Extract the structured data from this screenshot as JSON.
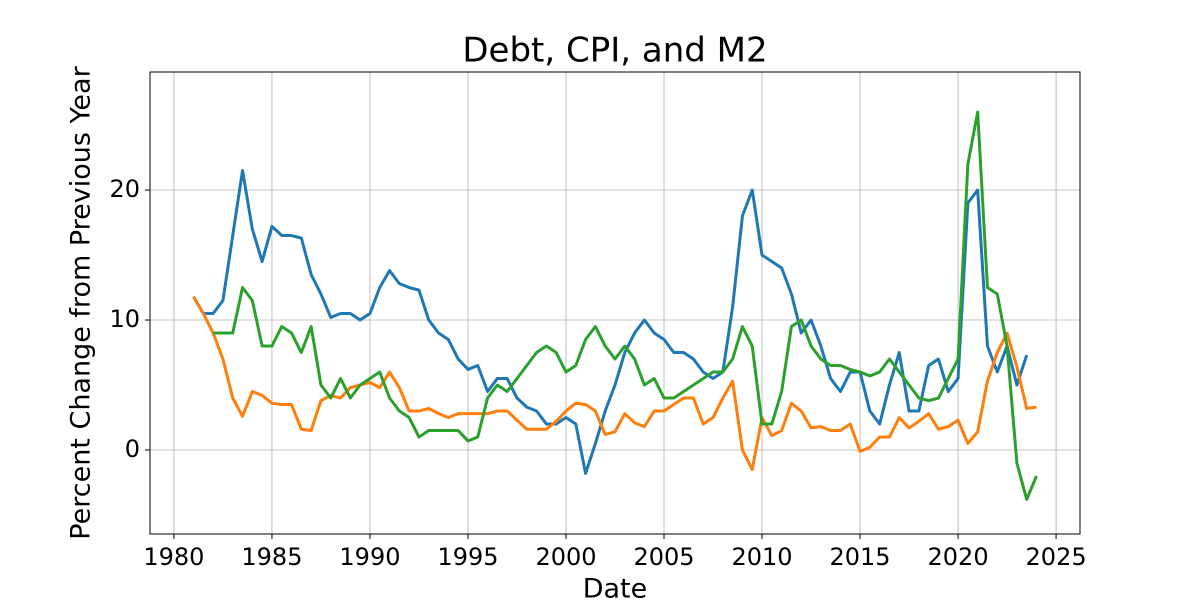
{
  "chart_data": {
    "type": "line",
    "title": "Debt, CPI, and M2",
    "x_label": "Date",
    "y_label": "Percent Change from Previous Year",
    "x": [
      1981,
      1981.5,
      1982,
      1982.5,
      1983,
      1983.5,
      1984,
      1984.5,
      1985,
      1985.5,
      1986,
      1986.5,
      1987,
      1987.5,
      1988,
      1988.5,
      1989,
      1989.5,
      1990,
      1990.5,
      1991,
      1991.5,
      1992,
      1992.5,
      1993,
      1993.5,
      1994,
      1994.5,
      1995,
      1995.5,
      1996,
      1996.5,
      1997,
      1997.5,
      1998,
      1998.5,
      1999,
      1999.5,
      2000,
      2000.5,
      2001,
      2001.5,
      2002,
      2002.5,
      2003,
      2003.5,
      2004,
      2004.5,
      2005,
      2005.5,
      2006,
      2006.5,
      2007,
      2007.5,
      2008,
      2008.5,
      2009,
      2009.5,
      2010,
      2010.5,
      2011,
      2011.5,
      2012,
      2012.5,
      2013,
      2013.5,
      2014,
      2014.5,
      2015,
      2015.5,
      2016,
      2016.5,
      2017,
      2017.5,
      2018,
      2018.5,
      2019,
      2019.5,
      2020,
      2020.5,
      2021,
      2021.5,
      2022,
      2022.5,
      2023,
      2023.5,
      2024
    ],
    "series": [
      {
        "color": "#1f77b4",
        "values": [
          11.8,
          10.5,
          10.5,
          11.5,
          16.5,
          21.5,
          17,
          14.5,
          17.2,
          16.5,
          16.5,
          16.3,
          13.5,
          12,
          10.2,
          10.5,
          10.5,
          10,
          10.5,
          12.5,
          13.8,
          12.8,
          12.5,
          12.3,
          10,
          9,
          8.5,
          7,
          6.2,
          6.5,
          4.5,
          5.5,
          5.5,
          4,
          3.3,
          3,
          2,
          2,
          2.5,
          2,
          -1.8,
          0.5,
          3,
          5,
          7.5,
          9,
          10,
          9,
          8.5,
          7.5,
          7.5,
          7,
          6,
          5.5,
          6,
          11,
          18,
          20,
          15,
          14.5,
          14,
          12,
          9,
          10,
          8,
          5.5,
          4.5,
          6,
          6,
          3,
          2,
          5,
          7.5,
          3,
          3,
          6.5,
          7,
          4.5,
          5.5,
          19,
          20,
          8,
          6,
          8,
          5,
          7.3,
          null
        ]
      },
      {
        "color": "#ff7f0e",
        "values": [
          11.8,
          10.5,
          9,
          7,
          4,
          2.6,
          4.5,
          4.2,
          3.6,
          3.5,
          3.5,
          1.6,
          1.5,
          3.8,
          4.2,
          4,
          4.8,
          5,
          5.2,
          4.8,
          6,
          4.8,
          3,
          3,
          3.2,
          2.8,
          2.5,
          2.8,
          2.8,
          2.8,
          2.8,
          3,
          3,
          2.3,
          1.6,
          1.6,
          1.6,
          2.2,
          3,
          3.6,
          3.5,
          3,
          1.2,
          1.4,
          2.8,
          2.1,
          1.8,
          3,
          3,
          3.5,
          4,
          4,
          2,
          2.5,
          4,
          5.3,
          0,
          -1.5,
          2.5,
          1.1,
          1.5,
          3.6,
          3,
          1.7,
          1.8,
          1.5,
          1.5,
          2,
          -0.1,
          0.2,
          1,
          1,
          2.5,
          1.7,
          2.2,
          2.8,
          1.6,
          1.8,
          2.3,
          0.5,
          1.4,
          5.3,
          7.5,
          9,
          6.4,
          3.2,
          3.3
        ]
      },
      {
        "color": "#2ca02c",
        "values": [
          null,
          null,
          9,
          9,
          9,
          12.5,
          11.5,
          8,
          8,
          9.5,
          9,
          7.5,
          9.5,
          5,
          4,
          5.5,
          4,
          5,
          5.5,
          6,
          4,
          3,
          2.5,
          1,
          1.5,
          1.5,
          1.5,
          1.5,
          0.7,
          1,
          4,
          5,
          4.5,
          5.5,
          6.5,
          7.5,
          8,
          7.5,
          6,
          6.5,
          8.5,
          9.5,
          8,
          7,
          8,
          7,
          5,
          5.5,
          4,
          4,
          4.5,
          5,
          5.5,
          6,
          6,
          7,
          9.5,
          8,
          2,
          2,
          4.5,
          9.5,
          10,
          8,
          7,
          6.5,
          6.5,
          6.2,
          6,
          5.7,
          6,
          7,
          6,
          5,
          4,
          3.8,
          4,
          5.5,
          7,
          22,
          26,
          12.5,
          12,
          8,
          -1,
          -3.8,
          -2
        ]
      }
    ],
    "xlim": [
      1978.78,
      2026.22
    ],
    "ylim": [
      -6.46,
      29.08
    ],
    "xticks": [
      1980,
      1985,
      1990,
      1995,
      2000,
      2005,
      2010,
      2015,
      2020,
      2025
    ],
    "yticks": [
      0,
      10,
      20
    ],
    "grid": true
  }
}
